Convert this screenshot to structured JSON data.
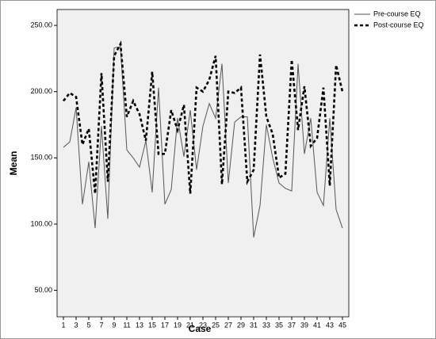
{
  "chart_data": {
    "type": "line",
    "x_label": "Case",
    "y_label": "Mean",
    "x": [
      1,
      2,
      3,
      4,
      5,
      6,
      7,
      8,
      9,
      10,
      11,
      12,
      13,
      14,
      15,
      16,
      17,
      18,
      19,
      20,
      21,
      22,
      23,
      24,
      25,
      26,
      27,
      28,
      29,
      30,
      31,
      32,
      33,
      34,
      35,
      36,
      37,
      38,
      39,
      40,
      41,
      42,
      43,
      44,
      45
    ],
    "xlim": [
      0,
      46
    ],
    "xticks": [
      1,
      3,
      5,
      7,
      9,
      11,
      13,
      15,
      17,
      19,
      21,
      23,
      25,
      27,
      29,
      31,
      33,
      35,
      37,
      39,
      41,
      43,
      45
    ],
    "ylim": [
      30,
      262
    ],
    "yticks": [
      {
        "value": 50,
        "label": "50.00"
      },
      {
        "value": 100,
        "label": "100.00"
      },
      {
        "value": 150,
        "label": "150.00"
      },
      {
        "value": 200,
        "label": "200.00"
      },
      {
        "value": 250,
        "label": "250.00"
      }
    ],
    "series": [
      {
        "name": "Pre-course EQ",
        "color": "#555555",
        "dash": false,
        "values": [
          158,
          162,
          188,
          115,
          147,
          97,
          174,
          104,
          233,
          234,
          156,
          150,
          143,
          163,
          124,
          203,
          115,
          126,
          180,
          151,
          186,
          141,
          174,
          191,
          180,
          221,
          131,
          177,
          181,
          181,
          90,
          114,
          175,
          150,
          131,
          127,
          125,
          221,
          153,
          180,
          124,
          114,
          180,
          111,
          97
        ]
      },
      {
        "name": "Post-course EQ",
        "color": "#000000",
        "dash": true,
        "values": [
          193,
          199,
          196,
          160,
          172,
          123,
          214,
          132,
          227,
          236,
          181,
          193,
          183,
          163,
          215,
          153,
          153,
          186,
          171,
          190,
          123,
          203,
          200,
          209,
          227,
          130,
          200,
          199,
          203,
          132,
          141,
          228,
          181,
          168,
          135,
          138,
          224,
          171,
          204,
          159,
          165,
          203,
          129,
          220,
          200
        ]
      }
    ]
  }
}
